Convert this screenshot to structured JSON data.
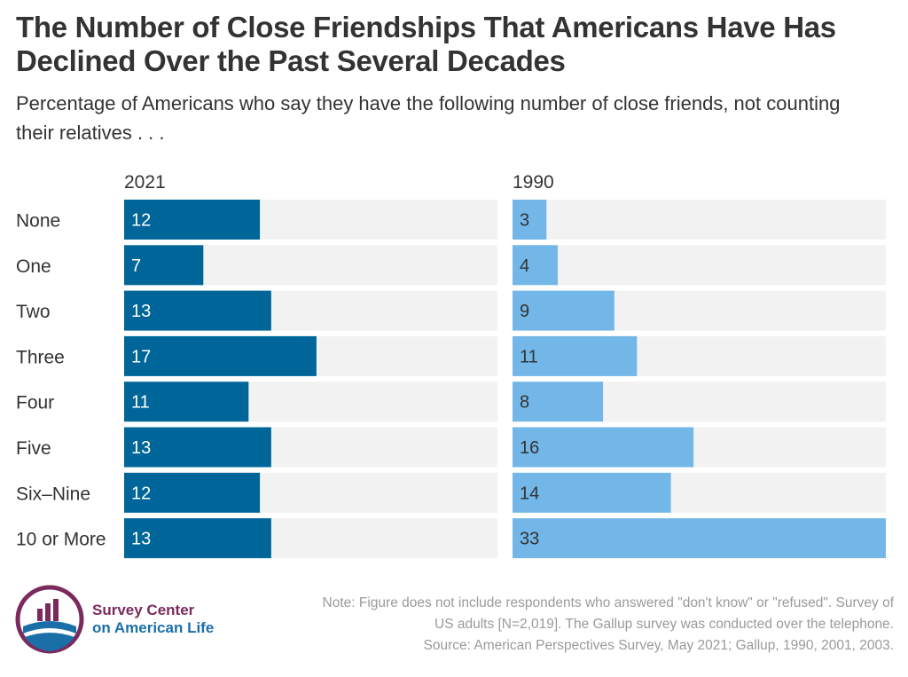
{
  "title": "The Number of Close Friendships That Americans Have Has Declined Over the Past Several Decades",
  "subtitle": "Percentage of Americans who say they have the following number of close friends, not counting their relatives . . .",
  "colors": {
    "bar_2021": "#006699",
    "bar_1990": "#72b7e8",
    "track": "#f2f2f2",
    "label_on_dark": "#ffffff",
    "label_on_light": "#333333"
  },
  "chart_data": {
    "type": "bar",
    "orientation": "horizontal",
    "categories": [
      "None",
      "One",
      "Two",
      "Three",
      "Four",
      "Five",
      "Six–Nine",
      "10 or More"
    ],
    "series": [
      {
        "name": "2021",
        "values": [
          12,
          7,
          13,
          17,
          11,
          13,
          12,
          13
        ]
      },
      {
        "name": "1990",
        "values": [
          3,
          4,
          9,
          11,
          8,
          16,
          14,
          33
        ]
      }
    ],
    "xlim": [
      0,
      33
    ],
    "grid": false
  },
  "logo": {
    "icon": "survey-center-logo-icon",
    "line1": "Survey Center",
    "line2": "on American Life"
  },
  "note": {
    "line1": "Note: Figure does not include respondents who answered \"don't know\" or \"refused\". Survey of",
    "line2": "US adults [N=2,019]. The Gallup survey was conducted over the telephone.",
    "line3": "Source: American Perspectives Survey, May 2021; Gallup, 1990, 2001, 2003."
  }
}
